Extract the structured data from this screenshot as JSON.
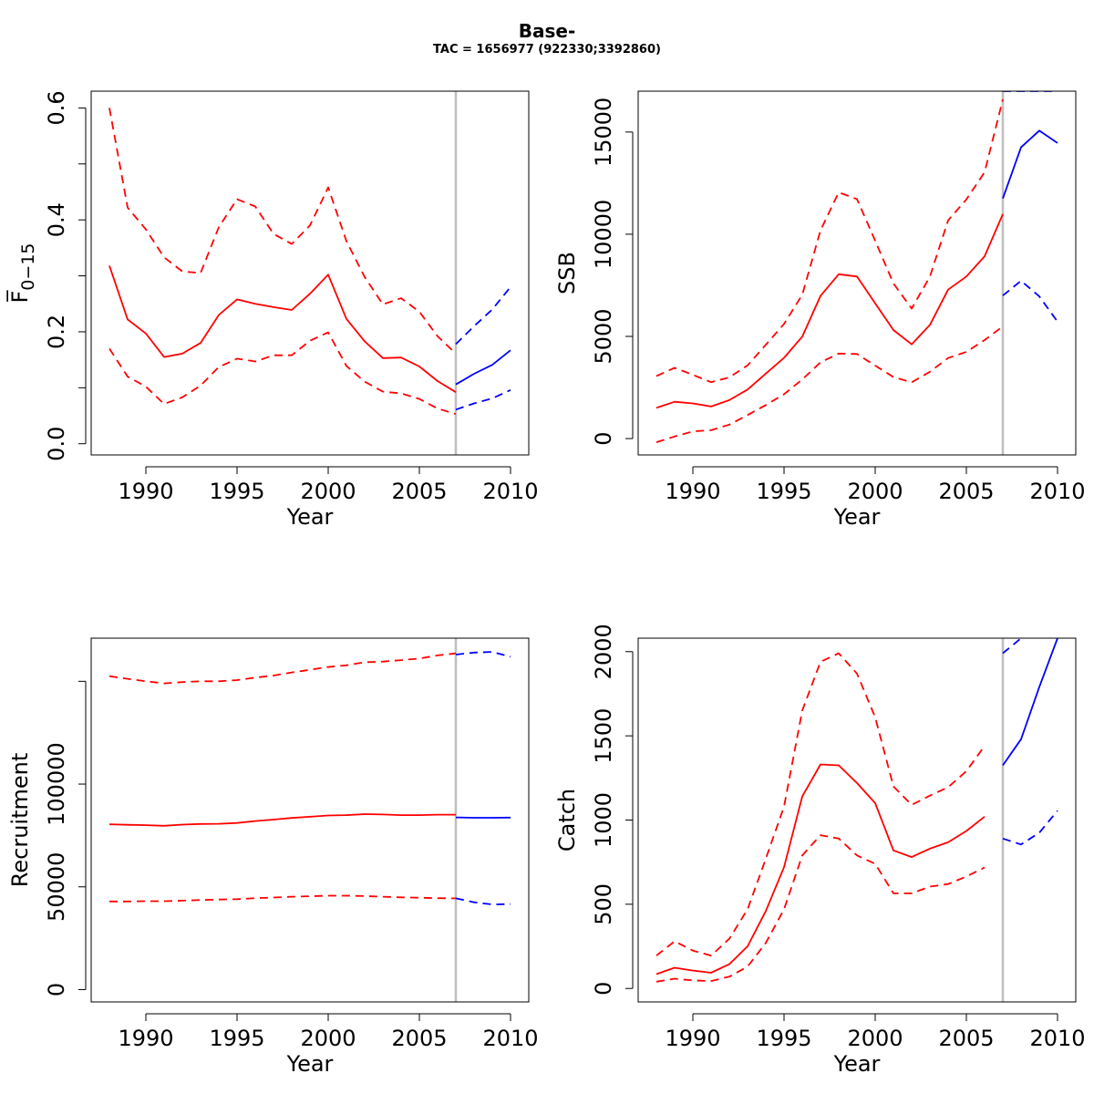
{
  "title": "Base-",
  "subtitle": "TAC = 1656977 (922330;3392860)",
  "colors": {
    "history": "#ff0000",
    "projection": "#0000ff",
    "divider": "#bebebe"
  },
  "chart_data": [
    {
      "type": "line",
      "panel": "top-left",
      "xlabel": "Year",
      "ylabel": "F̅",
      "ylabel_sub": "0−15",
      "xlim": [
        1987,
        2011
      ],
      "ylim": [
        -0.02,
        0.63
      ],
      "xticks": [
        "1990",
        "1995",
        "2000",
        "2005",
        "2010"
      ],
      "yticks": [
        "0.0",
        "0.2",
        "0.4",
        "0.6"
      ],
      "yticks_unlabeled": [
        0.1,
        0.3,
        0.5
      ],
      "divider_x": 2007,
      "series": [
        {
          "role": "history-median",
          "style": "solid",
          "color": "#ff0000",
          "x": [
            1988,
            1989,
            1990,
            1991,
            1992,
            1993,
            1994,
            1995,
            1996,
            1997,
            1998,
            1999,
            2000,
            2001,
            2002,
            2003,
            2004,
            2005,
            2006,
            2007
          ],
          "y": [
            0.318,
            0.222,
            0.197,
            0.155,
            0.161,
            0.18,
            0.23,
            0.258,
            0.25,
            0.244,
            0.239,
            0.268,
            0.302,
            0.223,
            0.183,
            0.153,
            0.154,
            0.138,
            0.112,
            0.092
          ]
        },
        {
          "role": "history-upper",
          "style": "dashed",
          "color": "#ff0000",
          "x": [
            1988,
            1989,
            1990,
            1991,
            1992,
            1993,
            1994,
            1995,
            1996,
            1997,
            1998,
            1999,
            2000,
            2001,
            2002,
            2003,
            2004,
            2005,
            2006,
            2007
          ],
          "y": [
            0.6,
            0.422,
            0.383,
            0.333,
            0.308,
            0.305,
            0.387,
            0.437,
            0.424,
            0.375,
            0.357,
            0.39,
            0.458,
            0.362,
            0.298,
            0.249,
            0.26,
            0.236,
            0.192,
            0.161
          ]
        },
        {
          "role": "history-lower",
          "style": "dashed",
          "color": "#ff0000",
          "x": [
            1988,
            1989,
            1990,
            1991,
            1992,
            1993,
            1994,
            1995,
            1996,
            1997,
            1998,
            1999,
            2000,
            2001,
            2002,
            2003,
            2004,
            2005,
            2006,
            2007
          ],
          "y": [
            0.17,
            0.12,
            0.102,
            0.071,
            0.083,
            0.104,
            0.137,
            0.152,
            0.147,
            0.158,
            0.158,
            0.184,
            0.199,
            0.139,
            0.111,
            0.093,
            0.09,
            0.08,
            0.063,
            0.053
          ]
        },
        {
          "role": "projection-median",
          "style": "solid",
          "color": "#0000ff",
          "x": [
            2007,
            2008,
            2009,
            2010
          ],
          "y": [
            0.106,
            0.125,
            0.141,
            0.167
          ]
        },
        {
          "role": "projection-upper",
          "style": "dashed",
          "color": "#0000ff",
          "x": [
            2007,
            2008,
            2009,
            2010
          ],
          "y": [
            0.178,
            0.21,
            0.24,
            0.28
          ]
        },
        {
          "role": "projection-lower",
          "style": "dashed",
          "color": "#0000ff",
          "x": [
            2007,
            2008,
            2009,
            2010
          ],
          "y": [
            0.061,
            0.072,
            0.081,
            0.096
          ]
        }
      ]
    },
    {
      "type": "line",
      "panel": "top-right",
      "xlabel": "Year",
      "ylabel": "SSB",
      "ylabel_sub": "",
      "xlim": [
        1987,
        2011
      ],
      "ylim": [
        -800,
        17000
      ],
      "xticks": [
        "1990",
        "1995",
        "2000",
        "2005",
        "2010"
      ],
      "yticks": [
        "0",
        "5000",
        "10000",
        "15000"
      ],
      "yticks_unlabeled": [],
      "divider_x": 2007,
      "series": [
        {
          "role": "history-median",
          "style": "solid",
          "color": "#ff0000",
          "x": [
            1988,
            1989,
            1990,
            1991,
            1992,
            1993,
            1994,
            1995,
            1996,
            1997,
            1998,
            1999,
            2000,
            2001,
            2002,
            2003,
            2004,
            2005,
            2006,
            2007
          ],
          "y": [
            1500,
            1800,
            1720,
            1570,
            1880,
            2400,
            3180,
            3950,
            4990,
            6980,
            8040,
            7930,
            6620,
            5310,
            4610,
            5560,
            7290,
            7930,
            8920,
            10980
          ]
        },
        {
          "role": "history-upper",
          "style": "dashed",
          "color": "#ff0000",
          "x": [
            1988,
            1989,
            1990,
            1991,
            1992,
            1993,
            1994,
            1995,
            1996,
            1997,
            1998,
            1999,
            2000,
            2001,
            2002,
            2003,
            2004,
            2005,
            2006,
            2007
          ],
          "y": [
            3060,
            3460,
            3120,
            2760,
            2990,
            3580,
            4590,
            5610,
            7040,
            10190,
            12050,
            11720,
            9680,
            7590,
            6360,
            7920,
            10680,
            11700,
            13040,
            16600
          ]
        },
        {
          "role": "history-lower",
          "style": "dashed",
          "color": "#ff0000",
          "x": [
            1988,
            1989,
            1990,
            1991,
            1992,
            1993,
            1994,
            1995,
            1996,
            1997,
            1998,
            1999,
            2000,
            2001,
            2002,
            2003,
            2004,
            2005,
            2006,
            2007
          ],
          "y": [
            -180,
            100,
            350,
            410,
            680,
            1150,
            1640,
            2170,
            2890,
            3730,
            4160,
            4140,
            3570,
            3010,
            2750,
            3270,
            3940,
            4240,
            4820,
            5490
          ]
        },
        {
          "role": "projection-median",
          "style": "solid",
          "color": "#0000ff",
          "x": [
            2007,
            2008,
            2009,
            2010
          ],
          "y": [
            11750,
            14250,
            15070,
            14460
          ]
        },
        {
          "role": "projection-upper",
          "style": "dashed",
          "color": "#0000ff",
          "x": [
            2007,
            2008,
            2009,
            2010
          ],
          "y": [
            17000,
            17000,
            17000,
            17000
          ]
        },
        {
          "role": "projection-lower",
          "style": "dashed",
          "color": "#0000ff",
          "x": [
            2007,
            2008,
            2009,
            2010
          ],
          "y": [
            7000,
            7720,
            6960,
            5720
          ]
        }
      ]
    },
    {
      "type": "line",
      "panel": "bottom-left",
      "xlabel": "Year",
      "ylabel": "Recruitment",
      "ylabel_sub": "",
      "xlim": [
        1987,
        2011
      ],
      "ylim": [
        -6000,
        171000
      ],
      "xticks": [
        "1990",
        "1995",
        "2000",
        "2005",
        "2010"
      ],
      "yticks": [
        "0",
        "50000",
        "100000"
      ],
      "yticks_unlabeled": [
        150000
      ],
      "divider_x": 2007,
      "series": [
        {
          "role": "history-median",
          "style": "solid",
          "color": "#ff0000",
          "x": [
            1988,
            1989,
            1990,
            1991,
            1992,
            1993,
            1994,
            1995,
            1996,
            1997,
            1998,
            1999,
            2000,
            2001,
            2002,
            2003,
            2004,
            2005,
            2006,
            2007
          ],
          "y": [
            80400,
            80200,
            80000,
            79700,
            80300,
            80600,
            80700,
            81100,
            82000,
            82700,
            83500,
            84100,
            84700,
            84900,
            85400,
            85200,
            84900,
            84900,
            85100,
            85100
          ]
        },
        {
          "role": "history-upper",
          "style": "dashed",
          "color": "#ff0000",
          "x": [
            1988,
            1989,
            1990,
            1991,
            1992,
            1993,
            1994,
            1995,
            1996,
            1997,
            1998,
            1999,
            2000,
            2001,
            2002,
            2003,
            2004,
            2005,
            2006,
            2007
          ],
          "y": [
            152500,
            151200,
            150000,
            149000,
            149600,
            150000,
            150000,
            150600,
            151800,
            152800,
            154300,
            155600,
            157000,
            157800,
            159300,
            159600,
            160300,
            161100,
            162600,
            163600
          ]
        },
        {
          "role": "history-lower",
          "style": "dashed",
          "color": "#ff0000",
          "x": [
            1988,
            1989,
            1990,
            1991,
            1992,
            1993,
            1994,
            1995,
            1996,
            1997,
            1998,
            1999,
            2000,
            2001,
            2002,
            2003,
            2004,
            2005,
            2006,
            2007
          ],
          "y": [
            42900,
            42900,
            43000,
            43000,
            43300,
            43600,
            43800,
            44000,
            44500,
            44800,
            45200,
            45400,
            45700,
            45700,
            45500,
            45200,
            44900,
            44700,
            44500,
            44400
          ]
        },
        {
          "role": "projection-median",
          "style": "solid",
          "color": "#0000ff",
          "x": [
            2007,
            2008,
            2009,
            2010
          ],
          "y": [
            83800,
            83600,
            83600,
            83700
          ]
        },
        {
          "role": "projection-upper",
          "style": "dashed",
          "color": "#0000ff",
          "x": [
            2007,
            2008,
            2009,
            2010
          ],
          "y": [
            163000,
            164000,
            164300,
            162000
          ]
        },
        {
          "role": "projection-lower",
          "style": "dashed",
          "color": "#0000ff",
          "x": [
            2007,
            2008,
            2009,
            2010
          ],
          "y": [
            44400,
            42500,
            41400,
            41600
          ]
        }
      ]
    },
    {
      "type": "line",
      "panel": "bottom-right",
      "xlabel": "Year",
      "ylabel": "Catch",
      "ylabel_sub": "",
      "xlim": [
        1987,
        2011
      ],
      "ylim": [
        -80,
        2080
      ],
      "xticks": [
        "1990",
        "1995",
        "2000",
        "2005",
        "2010"
      ],
      "yticks": [
        "0",
        "500",
        "1000",
        "1500",
        "2000"
      ],
      "yticks_unlabeled": [],
      "divider_x": 2007,
      "series": [
        {
          "role": "history-median",
          "style": "solid",
          "color": "#ff0000",
          "x": [
            1988,
            1989,
            1990,
            1991,
            1992,
            1993,
            1994,
            1995,
            1996,
            1997,
            1998,
            1999,
            2000,
            2001,
            2002,
            2003,
            2004,
            2005,
            2006
          ],
          "y": [
            85,
            123,
            106,
            93,
            144,
            250,
            460,
            720,
            1140,
            1330,
            1325,
            1220,
            1100,
            820,
            780,
            830,
            868,
            935,
            1020
          ]
        },
        {
          "role": "history-upper",
          "style": "dashed",
          "color": "#ff0000",
          "x": [
            1988,
            1989,
            1990,
            1991,
            1992,
            1993,
            1994,
            1995,
            1996,
            1997,
            1998,
            1999,
            2000,
            2001,
            2002,
            2003,
            2004,
            2005,
            2006
          ],
          "y": [
            195,
            280,
            225,
            195,
            295,
            470,
            770,
            1080,
            1650,
            1940,
            1990,
            1870,
            1610,
            1200,
            1090,
            1145,
            1195,
            1290,
            1440
          ]
        },
        {
          "role": "history-lower",
          "style": "dashed",
          "color": "#ff0000",
          "x": [
            1988,
            1989,
            1990,
            1991,
            1992,
            1993,
            1994,
            1995,
            1996,
            1997,
            1998,
            1999,
            2000,
            2001,
            2002,
            2003,
            2004,
            2005,
            2006
          ],
          "y": [
            40,
            58,
            48,
            44,
            70,
            130,
            270,
            470,
            790,
            910,
            890,
            790,
            740,
            565,
            565,
            605,
            620,
            665,
            718
          ]
        },
        {
          "role": "projection-median",
          "style": "solid",
          "color": "#0000ff",
          "x": [
            2007,
            2008,
            2009,
            2010
          ],
          "y": [
            1325,
            1480,
            1790,
            2080
          ]
        },
        {
          "role": "projection-upper",
          "style": "dashed",
          "color": "#0000ff",
          "x": [
            2007,
            2008
          ],
          "y": [
            1990,
            2080
          ]
        },
        {
          "role": "projection-lower",
          "style": "dashed",
          "color": "#0000ff",
          "x": [
            2007,
            2008,
            2009,
            2010
          ],
          "y": [
            890,
            855,
            925,
            1055
          ]
        }
      ]
    }
  ]
}
